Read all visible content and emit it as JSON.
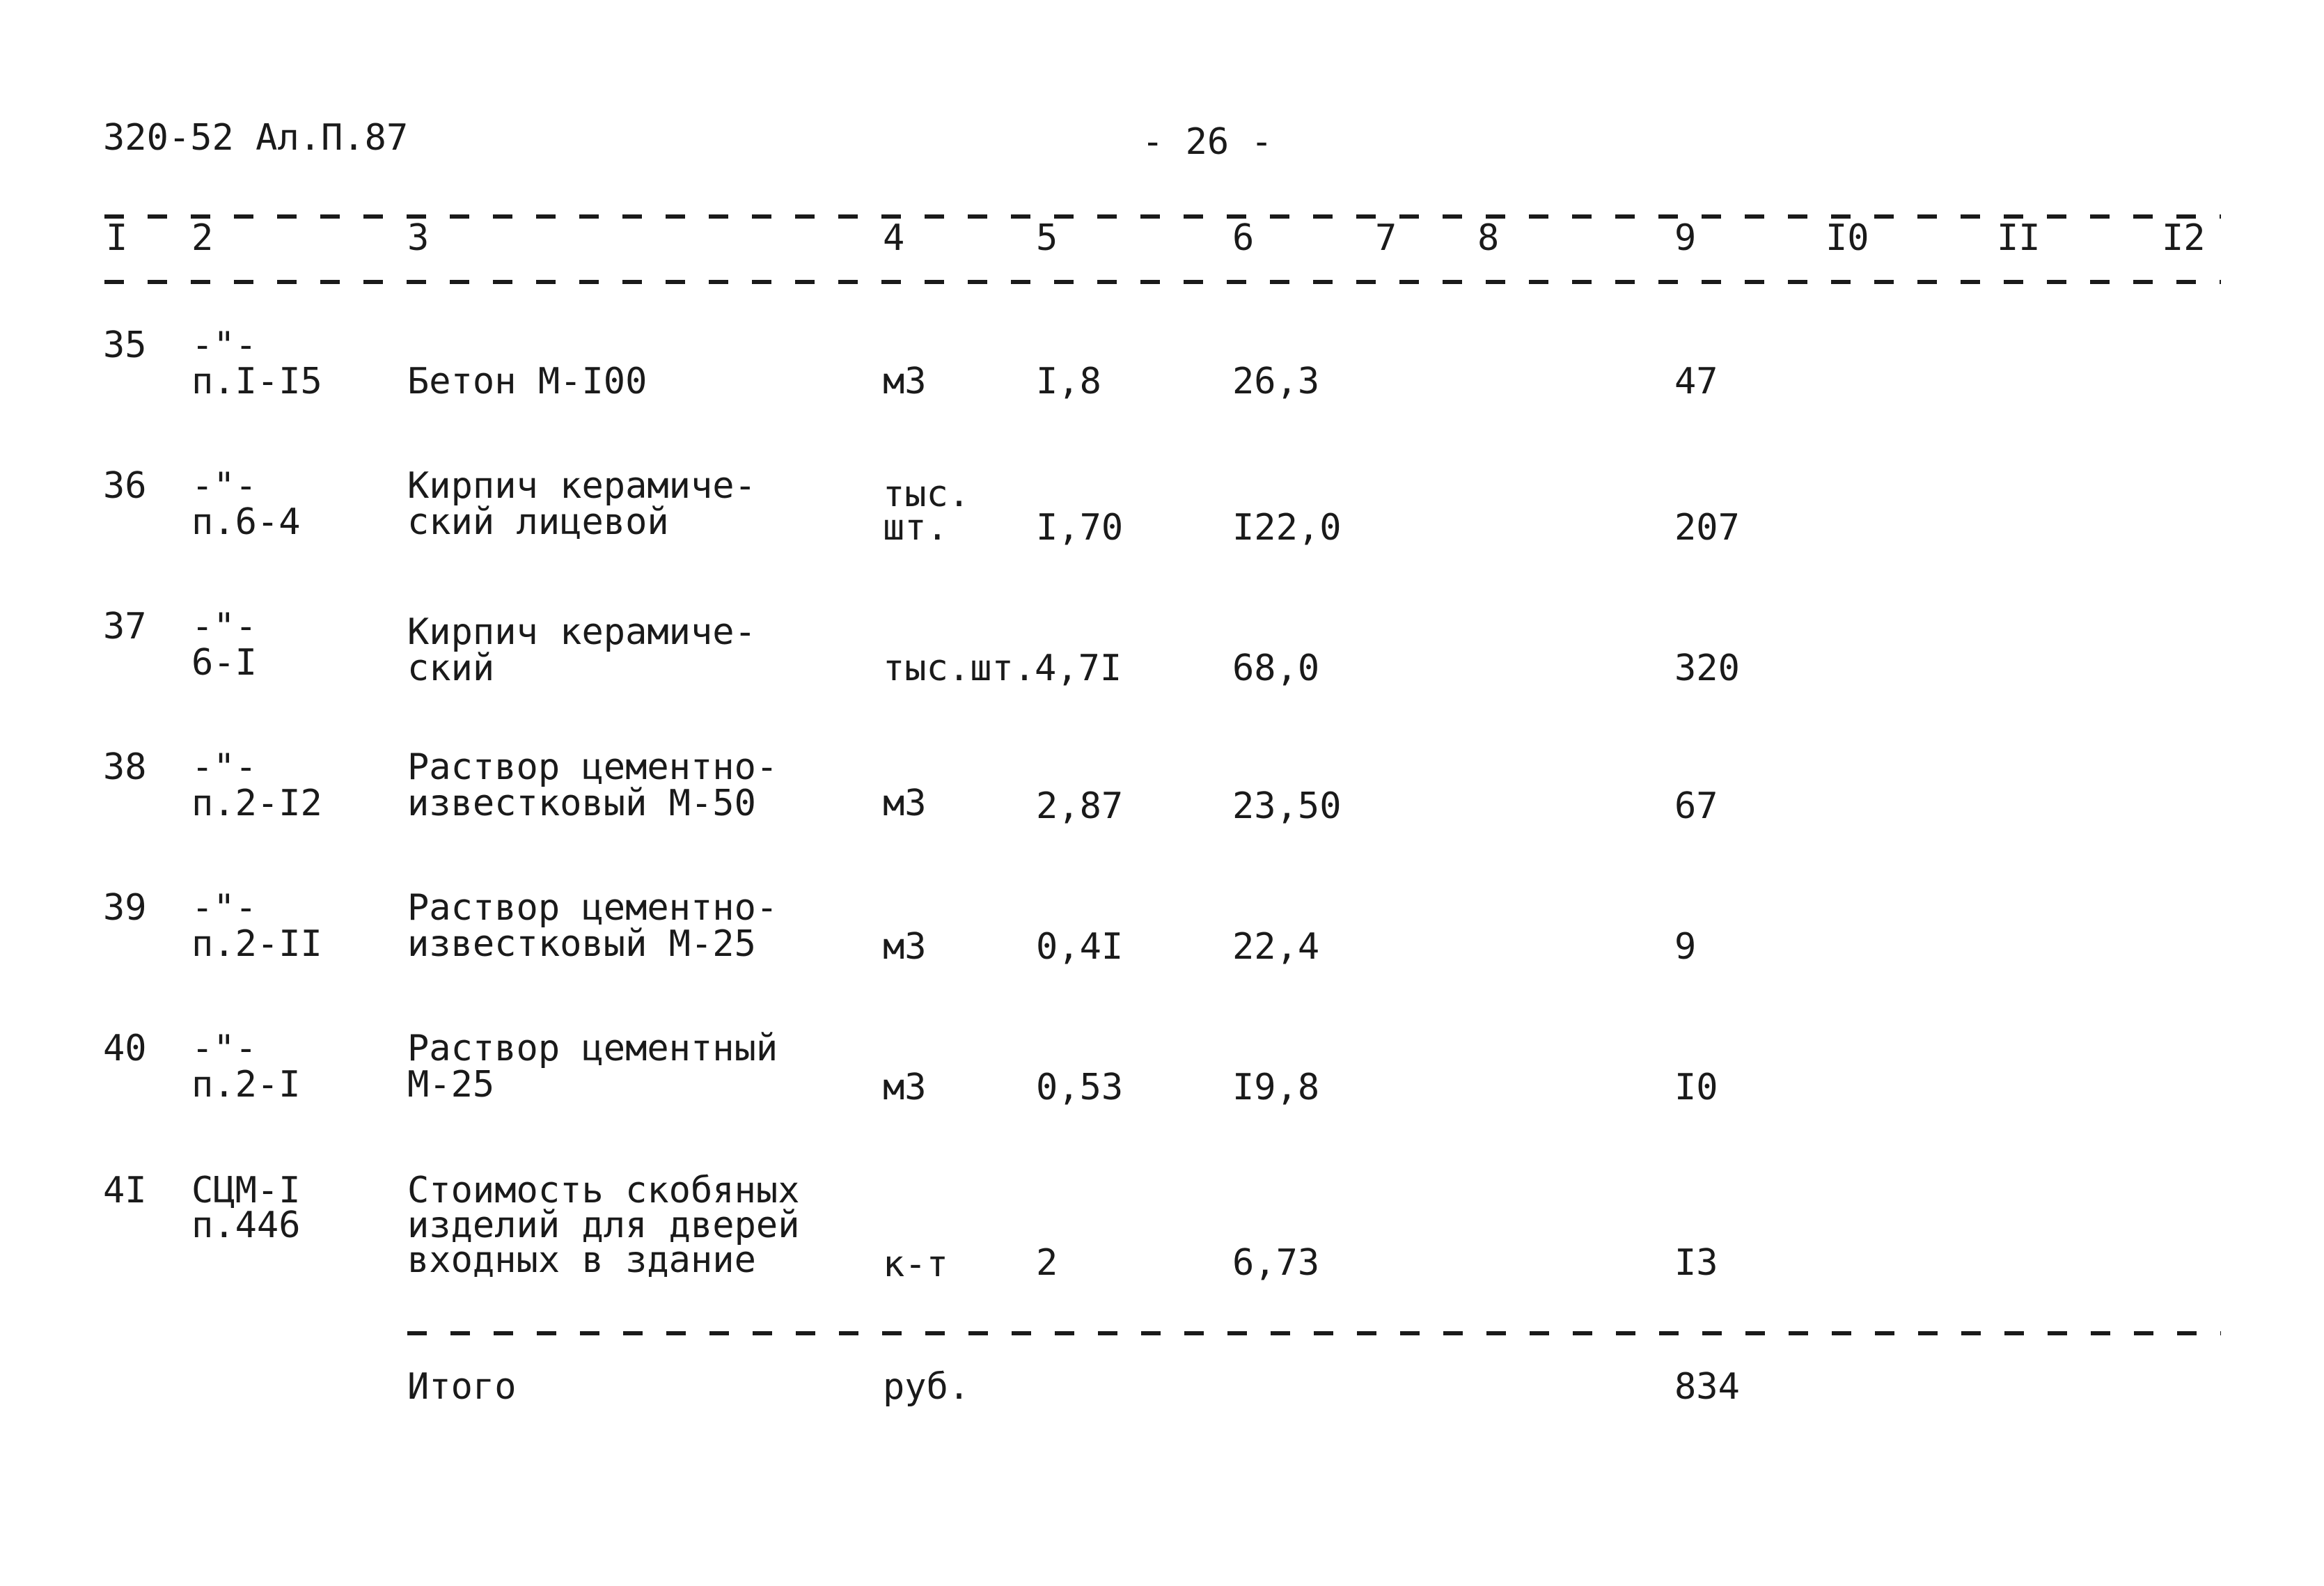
{
  "page": {
    "doc_code": "320-52 Ал.П.87",
    "page_number": "- 26 -"
  },
  "table": {
    "header": [
      "I",
      "2",
      "3",
      "4",
      "5",
      "6",
      "7",
      "8",
      "9",
      "I0",
      "II",
      "I2"
    ],
    "rows": [
      {
        "n": "35",
        "ref": [
          "-\"-",
          "п.I-I5"
        ],
        "name": [
          "",
          "Бетон М-I00"
        ],
        "unit": [
          "",
          "м3"
        ],
        "qty": "I,8",
        "price": "26,3",
        "total": "47"
      },
      {
        "n": "36",
        "ref": [
          "-\"-",
          "п.6-4"
        ],
        "name": [
          "Кирпич керамиче-",
          "ский лицевой"
        ],
        "unit": [
          "тыс.",
          "шт."
        ],
        "qty": "I,70",
        "price": "I22,0",
        "total": "207"
      },
      {
        "n": "37",
        "ref": [
          "-\"-",
          "6-I"
        ],
        "name": [
          "Кирпич керамиче-",
          "ский"
        ],
        "unit": [
          "",
          "тыс.шт."
        ],
        "qty": "4,7I",
        "price": "68,0",
        "total": "320"
      },
      {
        "n": "38",
        "ref": [
          "-\"-",
          "п.2-I2"
        ],
        "name": [
          "Раствор цементно-",
          "известковый М-50"
        ],
        "unit": [
          "",
          "м3"
        ],
        "qty": "2,87",
        "price": "23,50",
        "total": "67"
      },
      {
        "n": "39",
        "ref": [
          "-\"-",
          "п.2-II"
        ],
        "name": [
          "Раствор цементно-",
          "известковый М-25"
        ],
        "unit": [
          "",
          "м3"
        ],
        "qty": "0,4I",
        "price": "22,4",
        "total": "9"
      },
      {
        "n": "40",
        "ref": [
          "-\"-",
          "п.2-I"
        ],
        "name": [
          "Раствор цементный",
          "М-25"
        ],
        "unit": [
          "",
          "м3"
        ],
        "qty": "0,53",
        "price": "I9,8",
        "total": "I0"
      }
    ],
    "row41": {
      "n": "4I",
      "ref": [
        "СЦМ-I",
        "п.446"
      ],
      "name": [
        "Стоимость скобяных",
        "изделий для дверей",
        "входных в здание"
      ],
      "unit": "к-т",
      "qty": "2",
      "price": "6,73",
      "total": "I3"
    },
    "summary": {
      "label": "Итого",
      "unit": "руб.",
      "total": "834"
    }
  }
}
